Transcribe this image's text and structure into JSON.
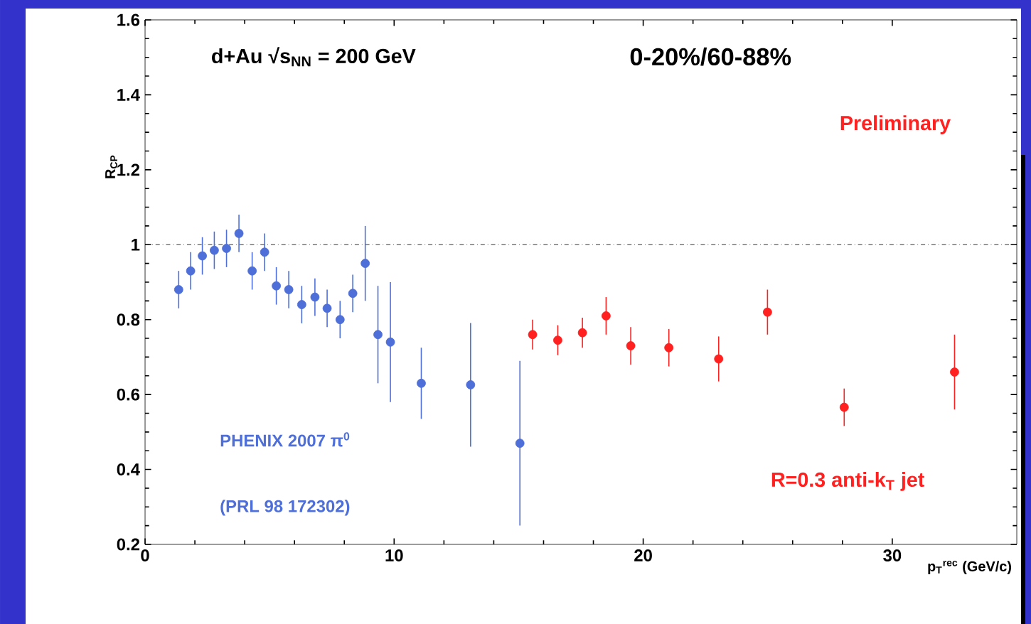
{
  "chart_data": {
    "type": "scatter",
    "xlabel": "p$_{T}$$^{rec}$ (GeV/c)",
    "ylabel": "R$_{CP}$",
    "annotations": [
      "d+Au √s$_{NN}$ = 200 GeV",
      "0-20%/60-88%",
      "Preliminary",
      "PHENIX 2007 π$^{0}$",
      "(PRL 98 172302)",
      "R=0.3 anti-k$_{T}$ jet"
    ],
    "xlim": [
      0,
      35
    ],
    "ylim": [
      0.2,
      1.6
    ],
    "xticks": [
      0,
      10,
      20,
      30
    ],
    "yticks": [
      0.2,
      0.4,
      0.6,
      0.8,
      1,
      1.2,
      1.4,
      1.6
    ],
    "ref_lines": [
      {
        "axis": "y",
        "value": 1,
        "line_style": "dashdotted",
        "color": "#000000"
      }
    ],
    "series": [
      {
        "color": "#4f6fd8",
        "x": [
          1.35,
          1.83,
          2.3,
          2.78,
          3.27,
          3.77,
          4.3,
          4.8,
          5.27,
          5.77,
          6.29,
          6.82,
          7.31,
          7.83,
          8.34,
          8.84,
          9.35,
          9.85,
          11.09,
          13.07,
          15.05
        ],
        "values": [
          0.88,
          0.93,
          0.97,
          0.985,
          0.99,
          1.03,
          0.93,
          0.98,
          0.89,
          0.88,
          0.84,
          0.86,
          0.83,
          0.8,
          0.87,
          0.95,
          0.76,
          0.74,
          0.63,
          0.626,
          0.47
        ],
        "errors": [
          0.05,
          0.05,
          0.05,
          0.05,
          0.05,
          0.05,
          0.05,
          0.05,
          0.05,
          0.05,
          0.05,
          0.05,
          0.05,
          0.05,
          0.05,
          0.1,
          0.13,
          0.16,
          0.095,
          0.165,
          0.22
        ]
      },
      {
        "color": "#ff2020",
        "x": [
          15.56,
          16.57,
          17.56,
          18.51,
          19.5,
          21.03,
          23.03,
          24.99,
          28.07,
          32.5
        ],
        "values": [
          0.76,
          0.745,
          0.765,
          0.81,
          0.73,
          0.725,
          0.695,
          0.82,
          0.566,
          0.66
        ],
        "errors": [
          0.04,
          0.04,
          0.04,
          0.05,
          0.05,
          0.05,
          0.06,
          0.06,
          0.05,
          0.1
        ]
      }
    ]
  }
}
